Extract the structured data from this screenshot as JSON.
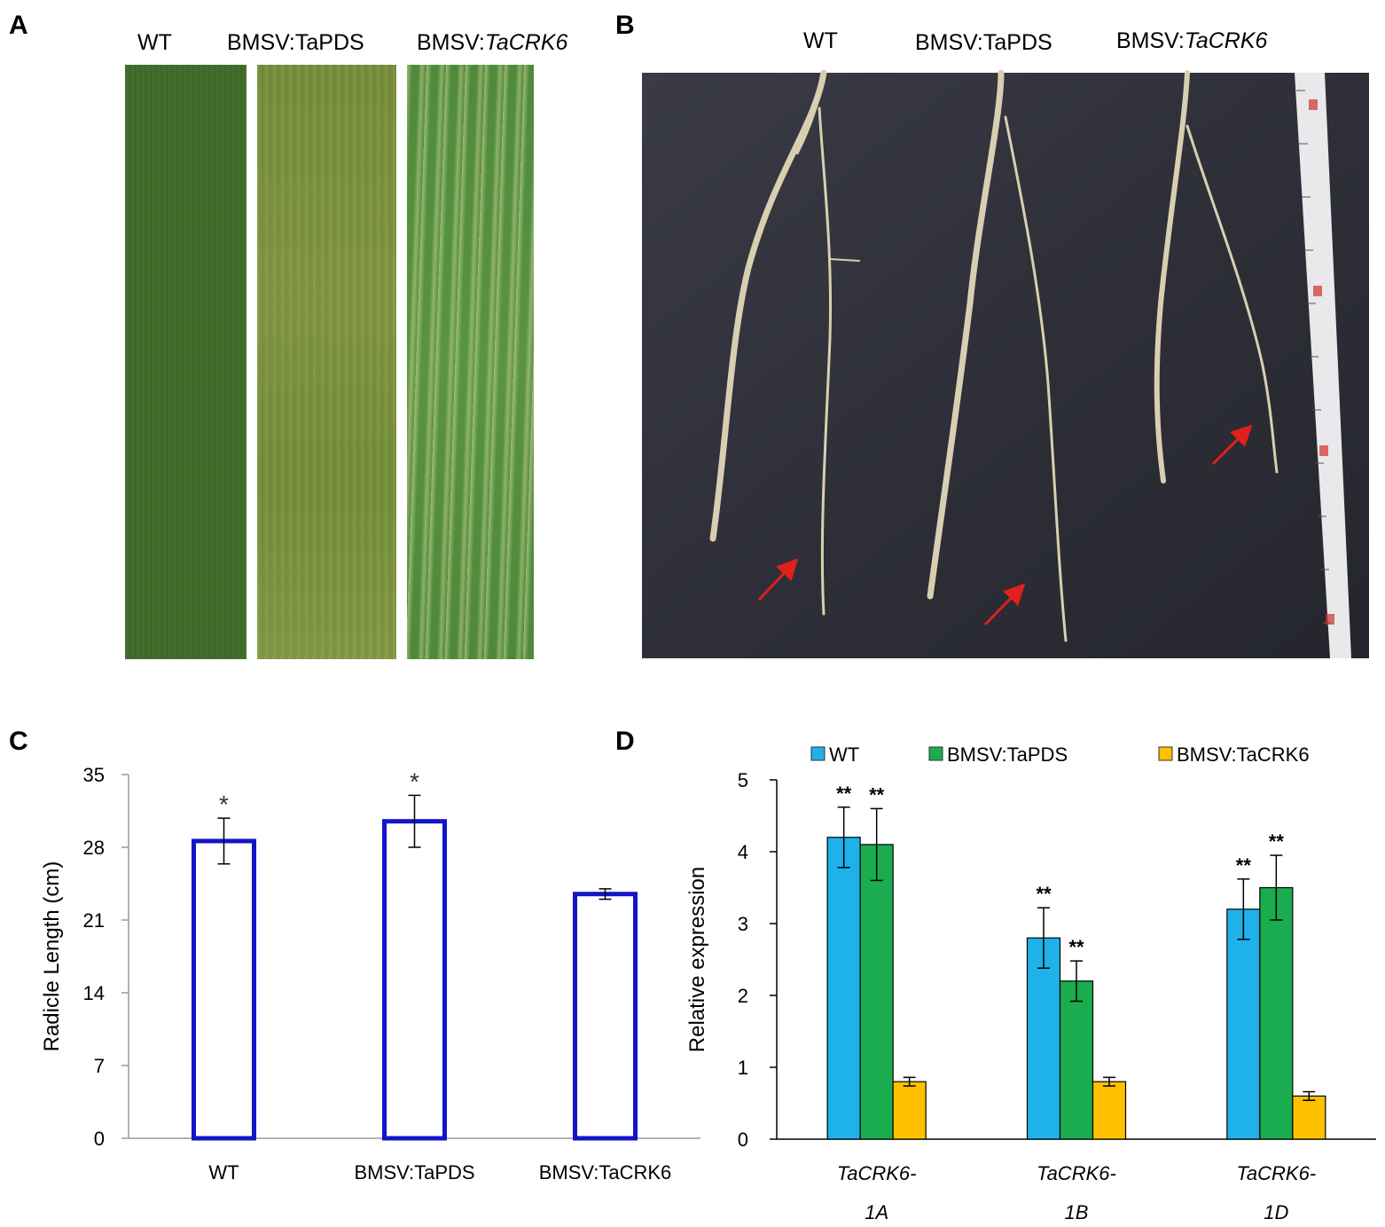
{
  "panels": {
    "a": {
      "letter": "A",
      "labels": [
        "WT",
        "BMSV:TaPDS"
      ],
      "label_crk_prefix": "BMSV:",
      "label_crk_gene": "TaCRK6"
    },
    "b": {
      "letter": "B",
      "labels": [
        "WT",
        "BMSV:TaPDS"
      ],
      "label_crk_prefix": "BMSV:",
      "label_crk_gene": "TaCRK6"
    },
    "c": {
      "letter": "C"
    },
    "d": {
      "letter": "D"
    }
  },
  "chart_data": [
    {
      "type": "bar",
      "ylabel": "Radicle Length (cm)",
      "xlabel": "",
      "categories": [
        "WT",
        "BMSV:TaPDS",
        "BMSV:TaCRK6"
      ],
      "values": [
        28.6,
        30.5,
        23.5
      ],
      "errors": [
        2.2,
        2.5,
        0.5
      ],
      "significance": [
        "*",
        "*",
        ""
      ],
      "ylim": [
        0,
        35
      ],
      "yticks": [
        0,
        7,
        14,
        21,
        28,
        35
      ],
      "bar_style": "hollow",
      "colors": {
        "bar_outline": "#1414c8",
        "error": "#000000"
      },
      "grid": false
    },
    {
      "type": "bar",
      "ylabel": "Relative expression",
      "xlabel": "",
      "categories": [
        [
          "TaCRK6-",
          "1A"
        ],
        [
          "TaCRK6-",
          "1B"
        ],
        [
          "TaCRK6-",
          "1D"
        ]
      ],
      "series": [
        {
          "name": "WT",
          "values": [
            4.2,
            2.8,
            3.2
          ],
          "errors": [
            0.42,
            0.42,
            0.42
          ],
          "significance": [
            "**",
            "**",
            "**"
          ],
          "color": "#1fb1ea"
        },
        {
          "name": "BMSV:TaPDS",
          "values": [
            4.1,
            2.2,
            3.5
          ],
          "errors": [
            0.5,
            0.28,
            0.45
          ],
          "significance": [
            "**",
            "**",
            "**"
          ],
          "color": "#1aac4f"
        },
        {
          "name": "BMSV:TaCRK6",
          "values": [
            0.8,
            0.8,
            0.6
          ],
          "errors": [
            0.06,
            0.06,
            0.06
          ],
          "significance": [
            "",
            "",
            ""
          ],
          "color": "#ffc000"
        }
      ],
      "ylim": [
        0,
        5
      ],
      "yticks": [
        0,
        1,
        2,
        3,
        4,
        5
      ],
      "legend": "top",
      "grid": false
    }
  ]
}
